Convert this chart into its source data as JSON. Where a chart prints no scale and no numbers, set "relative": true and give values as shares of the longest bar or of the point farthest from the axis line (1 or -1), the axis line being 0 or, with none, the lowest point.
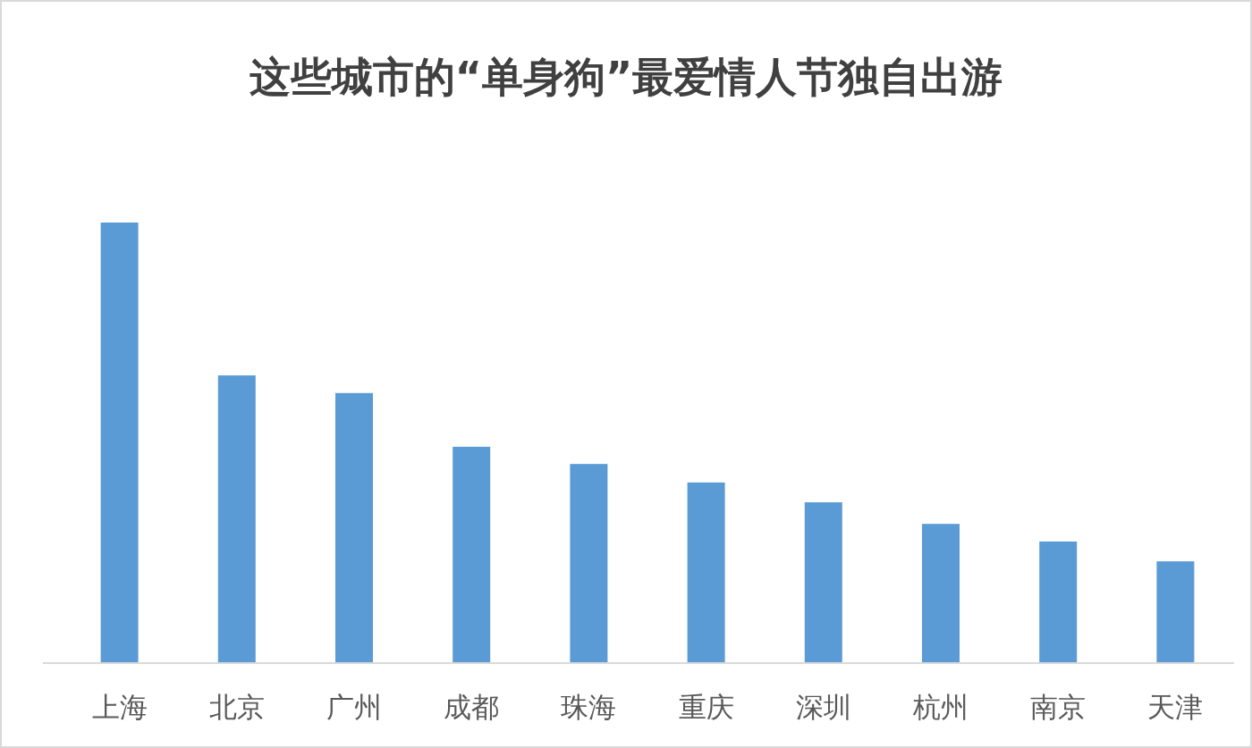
{
  "chart_data": {
    "type": "bar",
    "title": "这些城市的“单身狗”最爱情人节独自出游",
    "categories": [
      "上海",
      "北京",
      "广州",
      "成都",
      "珠海",
      "重庆",
      "深圳",
      "杭州",
      "南京",
      "天津"
    ],
    "values": [
      1,
      0.653,
      0.613,
      0.491,
      0.452,
      0.41,
      0.365,
      0.316,
      0.276,
      0.231
    ],
    "color": "#5b9bd5",
    "relative": true
  }
}
